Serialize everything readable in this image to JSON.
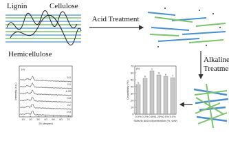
{
  "labels": {
    "lignin": "Lignin",
    "cellulose": "Cellulose",
    "hemicellulose": "Hemicellulose",
    "acid": "Acid Treatment",
    "alkaline_1": "Alkaline",
    "alkaline_2": "Treatment"
  },
  "chart_data": [
    {
      "type": "xrd",
      "panel": "(a)",
      "x_label": "2θ (degree)",
      "y_label": "Intensity (a.u.)",
      "xlim": [
        5,
        75
      ],
      "xticks": [
        10,
        20,
        30,
        40,
        50,
        60,
        70
      ],
      "curve_labels": [
        "5.0",
        "2.0",
        "1.25",
        "0.8",
        "0.2",
        "0.0"
      ]
    },
    {
      "type": "bar",
      "panel": "(b)",
      "x_label": "Sulfuric acid concentration (%, w/w)",
      "y_label": "Crystallinity (%)",
      "categories": [
        "0.0%",
        "0.2%",
        "0.8%",
        "1.25%",
        "2.0%",
        "5.0%"
      ],
      "values": [
        43,
        52,
        63,
        57,
        55,
        53
      ],
      "letters": [
        "a",
        "b",
        "c",
        "d",
        "e",
        "f"
      ],
      "color": "#c8c8c8",
      "ylim": [
        0,
        70
      ],
      "yticks": [
        0,
        10,
        20,
        30,
        40,
        50,
        60,
        70
      ]
    }
  ]
}
